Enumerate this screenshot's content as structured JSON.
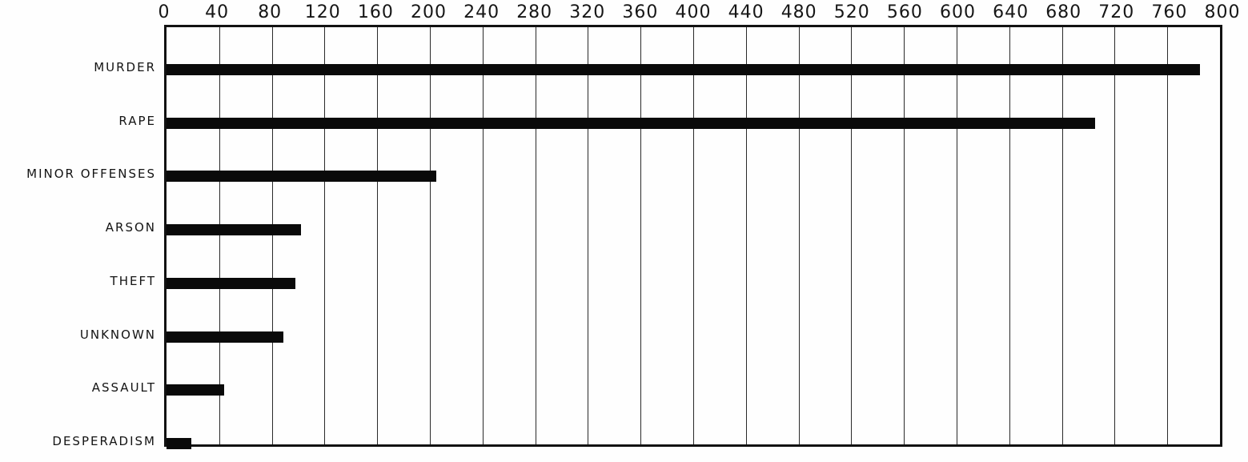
{
  "chart_data": {
    "type": "bar",
    "orientation": "horizontal",
    "title": "",
    "xlabel": "",
    "ylabel": "",
    "categories": [
      "MURDER",
      "RAPE",
      "MINOR OFFENSES",
      "ARSON",
      "THEFT",
      "UNKNOWN",
      "ASSAULT",
      "DESPERADISM"
    ],
    "values": [
      785,
      705,
      205,
      102,
      98,
      89,
      44,
      19
    ],
    "xlim": [
      0,
      800
    ],
    "x_ticks": [
      0,
      40,
      80,
      120,
      160,
      200,
      240,
      280,
      320,
      360,
      400,
      440,
      480,
      520,
      560,
      600,
      640,
      680,
      720,
      760,
      800
    ],
    "grid": "vertical gridlines at every 40 units",
    "legend": "none",
    "axis_position": "ticks along top edge"
  },
  "style": {
    "bar_color": "#0a0a0a",
    "background_color": "#fefefe",
    "grid_color": "#2a2a2a",
    "frame_color": "#121212",
    "text_color": "#141414"
  }
}
